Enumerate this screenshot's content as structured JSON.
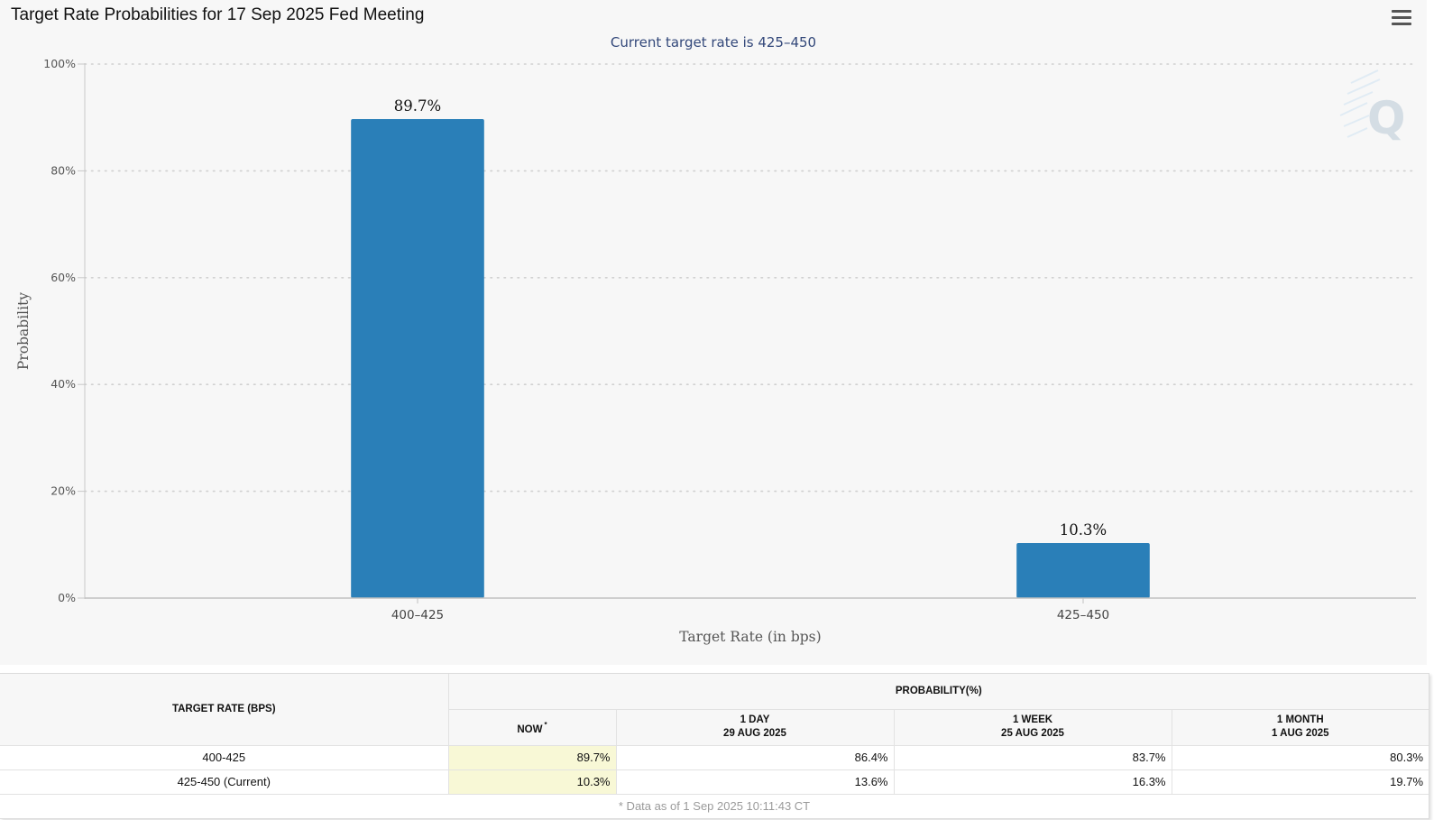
{
  "page": {
    "title": "Target Rate Probabilities for 17 Sep 2025 Fed Meeting",
    "menu_icon": "hamburger-menu-icon",
    "watermark_icon": "q-logo-icon"
  },
  "chart_data": {
    "type": "bar",
    "title": "Target Rate Probabilities for 17 Sep 2025 Fed Meeting",
    "subtitle": "Current target rate is 425–450",
    "categories": [
      "400–425",
      "425–450"
    ],
    "values": [
      89.7,
      10.3
    ],
    "data_labels": [
      "89.7%",
      "10.3%"
    ],
    "xlabel": "Target Rate (in bps)",
    "ylabel": "Probability",
    "ylim": [
      0,
      100
    ],
    "yticks": [
      "0%",
      "20%",
      "40%",
      "60%",
      "80%",
      "100%"
    ],
    "grid": true,
    "legend": "none",
    "colors": {
      "bar": "#2a7fb8",
      "grid": "#d0d0d0",
      "subtitle": "#33487a"
    }
  },
  "table": {
    "rate_header": "TARGET RATE (BPS)",
    "prob_header": "PROBABILITY(%)",
    "columns": [
      {
        "label": "NOW",
        "mark": "*",
        "date": ""
      },
      {
        "label": "1 DAY",
        "date": "29 AUG 2025"
      },
      {
        "label": "1 WEEK",
        "date": "25 AUG 2025"
      },
      {
        "label": "1 MONTH",
        "date": "1 AUG 2025"
      }
    ],
    "rows": [
      {
        "rate": "400-425",
        "cells": [
          "89.7%",
          "86.4%",
          "83.7%",
          "80.3%"
        ]
      },
      {
        "rate": "425-450 (Current)",
        "cells": [
          "10.3%",
          "13.6%",
          "16.3%",
          "19.7%"
        ]
      }
    ],
    "footnote": "* Data as of 1 Sep 2025 10:11:43 CT",
    "highlight_color": "#f8f8d6"
  }
}
